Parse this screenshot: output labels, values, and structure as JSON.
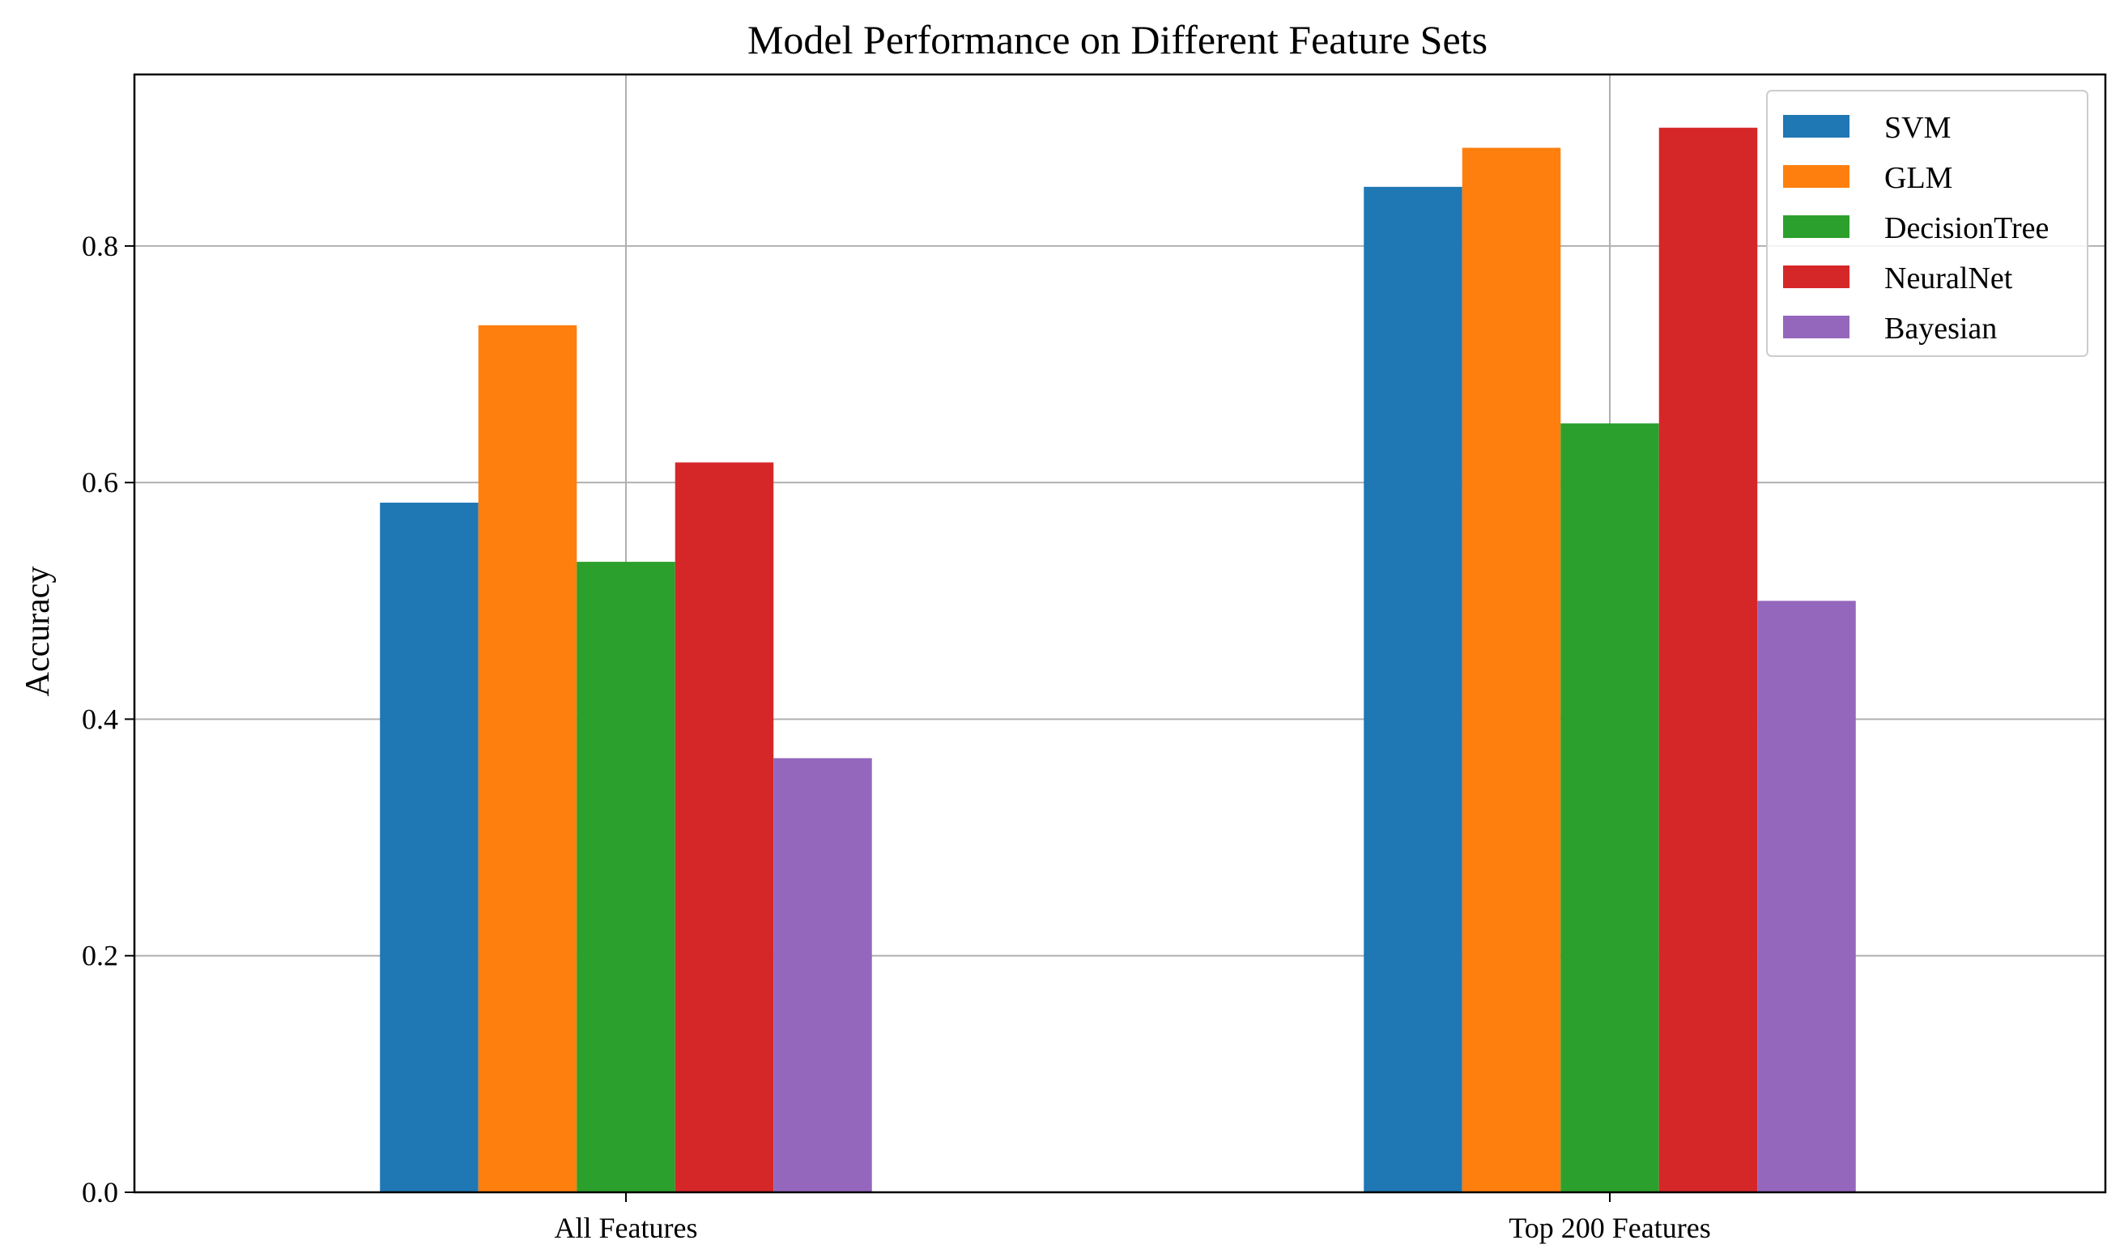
{
  "chart_data": {
    "type": "bar",
    "title": "Model Performance on Different Feature Sets",
    "xlabel": "",
    "ylabel": "Accuracy",
    "ylim": [
      0,
      0.945
    ],
    "yticks": [
      "0.0",
      "0.2",
      "0.4",
      "0.6",
      "0.8"
    ],
    "ytick_values": [
      0.0,
      0.2,
      0.4,
      0.6,
      0.8
    ],
    "categories": [
      "All Features",
      "Top 200 Features"
    ],
    "series": [
      {
        "name": "SVM",
        "color": "#1f77b4",
        "values": [
          0.583,
          0.85
        ]
      },
      {
        "name": "GLM",
        "color": "#ff7f0e",
        "values": [
          0.733,
          0.883
        ]
      },
      {
        "name": "DecisionTree",
        "color": "#2ca02c",
        "values": [
          0.533,
          0.65
        ]
      },
      {
        "name": "NeuralNet",
        "color": "#d62728",
        "values": [
          0.617,
          0.9
        ]
      },
      {
        "name": "Bayesian",
        "color": "#9467bd",
        "values": [
          0.367,
          0.5
        ]
      }
    ],
    "grid": true,
    "legend_position": "upper right"
  }
}
